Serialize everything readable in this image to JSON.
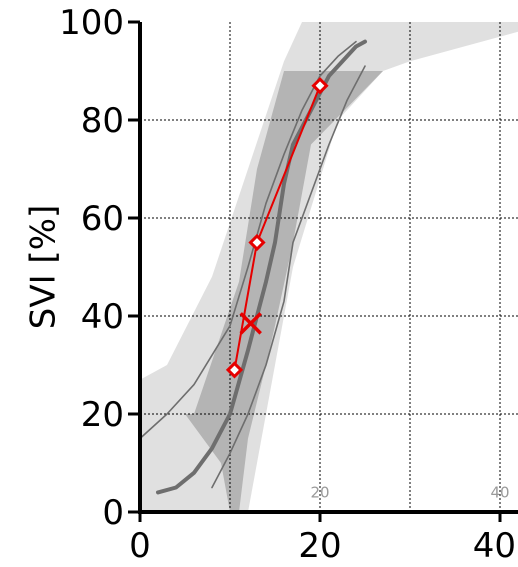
{
  "chart_data": {
    "type": "line",
    "title": "",
    "xlabel": "",
    "ylabel": "SVI [%]",
    "xlim": [
      0,
      42
    ],
    "ylim": [
      0,
      100
    ],
    "x_ticks": [
      "0",
      "20",
      "40"
    ],
    "x_tick_values": [
      0,
      20,
      40
    ],
    "y_ticks": [
      "0",
      "20",
      "40",
      "60",
      "80",
      "100"
    ],
    "y_tick_values": [
      0,
      20,
      40,
      60,
      80,
      100
    ],
    "grid_x": [
      10,
      20,
      30,
      40
    ],
    "grid_y": [
      20,
      40,
      60,
      80
    ],
    "grid": true,
    "inner_labels": [
      {
        "text": "20",
        "x": 20,
        "y": 3
      },
      {
        "text": "40",
        "x": 40,
        "y": 3
      }
    ],
    "colors": {
      "series": "#e60000",
      "curves": "#6e6e6e",
      "band_dark": "#b4b4b4",
      "band_light": "#e0e0e0"
    },
    "band_light": [
      [
        0,
        0
      ],
      [
        0,
        27
      ],
      [
        3,
        30
      ],
      [
        8,
        48
      ],
      [
        12,
        70
      ],
      [
        16,
        92
      ],
      [
        18,
        100
      ],
      [
        37,
        100
      ],
      [
        40,
        100
      ],
      [
        42,
        100
      ],
      [
        42,
        98
      ],
      [
        36,
        95
      ],
      [
        30,
        92
      ],
      [
        27,
        90
      ],
      [
        22,
        80
      ],
      [
        17,
        50
      ],
      [
        15,
        30
      ],
      [
        13,
        10
      ],
      [
        12,
        0
      ]
    ],
    "band_dark": [
      [
        0,
        20
      ],
      [
        6,
        20
      ],
      [
        11,
        47
      ],
      [
        13,
        70
      ],
      [
        16,
        90
      ],
      [
        27,
        90
      ],
      [
        19,
        75
      ],
      [
        17,
        55
      ],
      [
        15,
        38
      ],
      [
        14,
        30
      ],
      [
        12,
        15
      ],
      [
        11,
        0
      ],
      [
        10,
        0
      ],
      [
        9,
        10
      ],
      [
        5,
        20
      ]
    ],
    "reference_curves": [
      {
        "points": [
          [
            2,
            4
          ],
          [
            4,
            5
          ],
          [
            6,
            8
          ],
          [
            8,
            13
          ],
          [
            10,
            20
          ],
          [
            12,
            33
          ],
          [
            14,
            47
          ],
          [
            15,
            55
          ],
          [
            16,
            67
          ],
          [
            17,
            75
          ],
          [
            19,
            82
          ],
          [
            21,
            89
          ],
          [
            24,
            95
          ],
          [
            25,
            96
          ]
        ],
        "width": 4
      },
      {
        "points": [
          [
            0,
            15
          ],
          [
            3,
            20
          ],
          [
            6,
            26
          ],
          [
            8,
            32
          ],
          [
            10,
            38
          ],
          [
            12,
            50
          ],
          [
            14,
            63
          ],
          [
            16,
            73
          ],
          [
            18,
            82
          ],
          [
            20,
            89
          ],
          [
            22,
            93
          ],
          [
            24,
            96
          ]
        ],
        "width": 1.6
      },
      {
        "points": [
          [
            8,
            5
          ],
          [
            10,
            12
          ],
          [
            12,
            20
          ],
          [
            14,
            30
          ],
          [
            16,
            43
          ],
          [
            17,
            55
          ],
          [
            19,
            65
          ],
          [
            21,
            75
          ],
          [
            23,
            84
          ],
          [
            25,
            91
          ]
        ],
        "width": 1.6
      }
    ],
    "series": [
      {
        "x": [
          10.5,
          13,
          20
        ],
        "y": [
          29,
          55,
          87
        ],
        "marker": "diamond"
      }
    ],
    "special_points": [
      {
        "x": 12.3,
        "y": 38.5,
        "marker": "cross"
      }
    ]
  }
}
